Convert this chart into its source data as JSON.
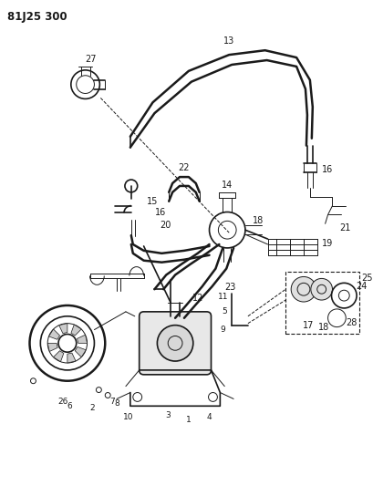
{
  "title": "81J25 300",
  "bg_color": "#ffffff",
  "line_color": "#1a1a1a",
  "fig_width": 4.09,
  "fig_height": 5.33,
  "dpi": 100
}
